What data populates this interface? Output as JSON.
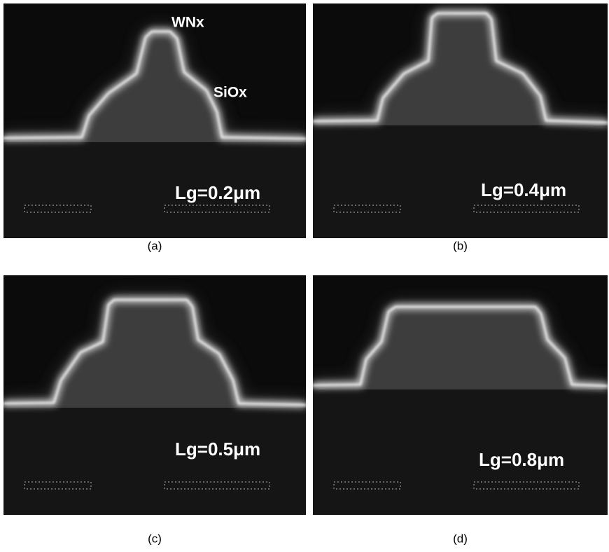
{
  "panels": [
    {
      "caption": "(a)",
      "label": "Lg=0.2μm",
      "annotations": [
        "WNx",
        "SiOx"
      ]
    },
    {
      "caption": "(b)",
      "label": "Lg=0.4μm"
    },
    {
      "caption": "(c)",
      "label": "Lg=0.5μm"
    },
    {
      "caption": "(d)",
      "label": "Lg=0.8μm"
    }
  ]
}
